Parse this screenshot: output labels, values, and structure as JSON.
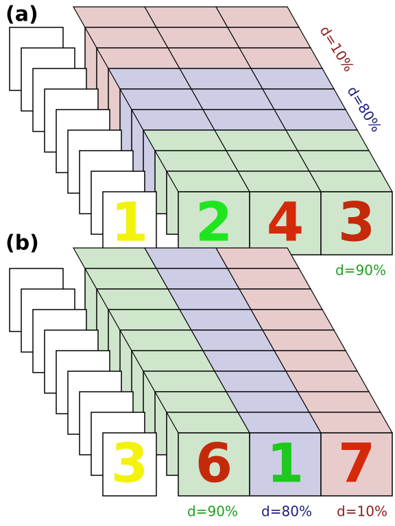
{
  "panel_a": {
    "label": "(a)",
    "front_digits": [
      "1",
      "2",
      "4",
      "3"
    ],
    "depth_labels": [
      "d=10%",
      "d=80%",
      "d=90%"
    ]
  },
  "panel_b": {
    "label": "(b)",
    "front_digits": [
      "3",
      "6",
      "1",
      "7"
    ],
    "depth_labels": [
      "d=90%",
      "d=80%",
      "d=10%"
    ]
  }
}
